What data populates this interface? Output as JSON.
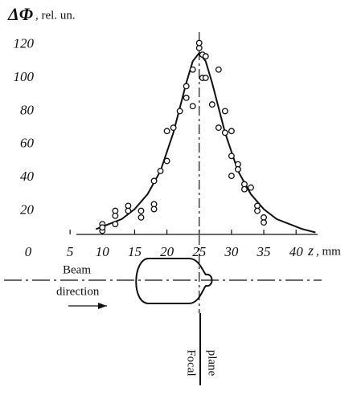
{
  "chart_data": {
    "type": "scatter",
    "y_label_symbol": "ΔΦ",
    "y_label_unit": ", rel. un.",
    "x_label_symbol": "z",
    "x_label_unit": ", mm",
    "xlim": [
      0,
      43
    ],
    "ylim": [
      0,
      125
    ],
    "xticks": [
      0,
      5,
      10,
      15,
      20,
      25,
      30,
      35,
      40
    ],
    "yticks": [
      20,
      40,
      60,
      80,
      100,
      120
    ],
    "color": "#111111",
    "points": {
      "x": [
        10,
        10,
        10,
        12,
        12,
        12,
        14,
        14,
        16,
        16,
        18,
        18,
        18,
        19,
        20,
        20,
        21,
        22,
        23,
        23,
        24,
        24,
        25,
        25,
        25.5,
        25.5,
        26,
        26,
        27,
        28,
        28,
        29,
        29,
        30,
        30,
        30,
        31,
        31,
        32,
        32,
        33,
        34,
        34,
        35,
        35
      ],
      "y": [
        12,
        8,
        10,
        20,
        17,
        12,
        23,
        20,
        20,
        16,
        24,
        21,
        38,
        44,
        50,
        68,
        70,
        80,
        88,
        95,
        105,
        83,
        118,
        121,
        100,
        114,
        113,
        100,
        84,
        105,
        70,
        80,
        67,
        68,
        53,
        41,
        48,
        45,
        36,
        33,
        34,
        23,
        20,
        16,
        13
      ]
    },
    "curve": {
      "x": [
        9,
        11,
        13,
        15,
        17,
        19,
        21,
        23,
        24,
        25,
        26,
        27,
        29,
        31,
        33,
        35,
        37,
        39,
        41,
        43
      ],
      "y": [
        9,
        12,
        15,
        21,
        30,
        44,
        67,
        97,
        110,
        115,
        110,
        97,
        67,
        44,
        30,
        21,
        15,
        12,
        9,
        7
      ]
    },
    "focal_z": 25,
    "annotations": {
      "beam": "Beam",
      "direction": "direction",
      "focal": "Focal",
      "plane": "plane"
    }
  }
}
